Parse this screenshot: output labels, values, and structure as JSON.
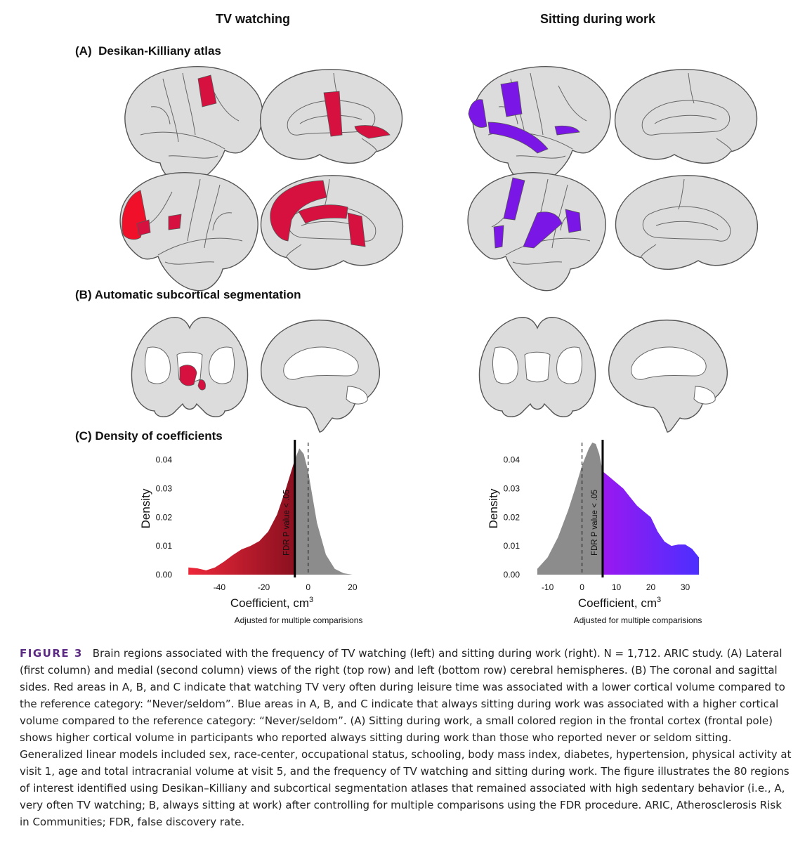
{
  "columns": {
    "left_title": "TV watching",
    "right_title": "Sitting during work"
  },
  "panels": {
    "a_letter": "(A)",
    "a_label": "Desikan-Killiany atlas",
    "b_letter": "(B)",
    "b_label": "Automatic subcortical segmentation",
    "c_letter": "(C)",
    "c_label": "Density of coefficients"
  },
  "colors": {
    "region_gray": "#dcdcdc",
    "tv_highlight": "#d6103f",
    "tv_highlight_bright": "#f0102a",
    "sit_highlight": "#7a16e6",
    "sit_highlight_blue": "#5a28ff",
    "density_gray": "#8c8c8c",
    "caption_label": "#5b2a82"
  },
  "chart_data": [
    {
      "type": "area",
      "x": [
        -54,
        -50,
        -46,
        -42,
        -38,
        -34,
        -30,
        -26,
        -22,
        -18,
        -14,
        -10,
        -6,
        -4,
        -2,
        0,
        2,
        4,
        8,
        12,
        16,
        20
      ],
      "y": [
        0.0025,
        0.0022,
        0.0015,
        0.0025,
        0.0045,
        0.0068,
        0.0088,
        0.01,
        0.0117,
        0.015,
        0.021,
        0.03,
        0.04,
        0.044,
        0.042,
        0.036,
        0.027,
        0.018,
        0.007,
        0.002,
        0.0005,
        0.0
      ],
      "threshold_solid": -6,
      "reference_dashed": 0,
      "threshold_label": "FDR P value < .05",
      "xlabel": "Coefficient, cm",
      "xlabel_sup": "3",
      "ylabel": "Density",
      "xticks": [
        -40,
        -20,
        0,
        20
      ],
      "yticks": [
        0.0,
        0.01,
        0.02,
        0.03,
        0.04
      ],
      "ytick_labels": [
        "0.00",
        "0.01",
        "0.02",
        "0.03",
        "0.04"
      ],
      "xlim": [
        -55,
        21
      ],
      "ylim": [
        0,
        0.046
      ],
      "note": "Adjusted for multiple comparisions"
    },
    {
      "type": "area",
      "x": [
        -13,
        -10,
        -7,
        -4,
        -2,
        0,
        2,
        3,
        4,
        5,
        6,
        8,
        10,
        12,
        14,
        16,
        18,
        20,
        22,
        24,
        26,
        28,
        30,
        32,
        34
      ],
      "y": [
        0.002,
        0.006,
        0.013,
        0.0225,
        0.03,
        0.038,
        0.044,
        0.046,
        0.0455,
        0.042,
        0.036,
        0.034,
        0.032,
        0.03,
        0.027,
        0.024,
        0.022,
        0.02,
        0.015,
        0.0115,
        0.01,
        0.0105,
        0.0105,
        0.009,
        0.006
      ],
      "threshold_solid": 6,
      "reference_dashed": 0,
      "threshold_label": "FDR P value < .05",
      "xlabel": "Coefficient, cm",
      "xlabel_sup": "3",
      "ylabel": "Density",
      "xticks": [
        -10,
        0,
        10,
        20,
        30
      ],
      "yticks": [
        0.0,
        0.01,
        0.02,
        0.03,
        0.04
      ],
      "ytick_labels": [
        "0.00",
        "0.01",
        "0.02",
        "0.03",
        "0.04"
      ],
      "xlim": [
        -14,
        35
      ],
      "ylim": [
        0,
        0.046
      ],
      "note": "Adjusted for multiple comparisions"
    }
  ],
  "caption": {
    "label": "FIGURE 3",
    "text": "Brain regions associated with the frequency of TV watching (left) and sitting during work (right). N = 1,712. ARIC study. (A) Lateral (first column) and medial (second column) views of the right (top row) and left (bottom row) cerebral hemispheres. (B) The coronal and sagittal sides. Red areas in A, B, and C indicate that watching TV very often during leisure time was associated with a lower cortical volume compared to the reference category: “Never/seldom”. Blue areas in A, B, and C indicate that always sitting during work was associated with a higher cortical volume compared to the reference category: “Never/seldom”. (A) Sitting during work, a small colored region in the frontal cortex (frontal pole) shows higher cortical volume in participants who reported always sitting during work than those who reported never or seldom sitting. Generalized linear models included sex, race-center, occupational status, schooling, body mass index, diabetes, hypertension, physical activity at visit 1, age and total intracranial volume at visit 5, and the frequency of TV watching and sitting during work. The figure illustrates the 80 regions of interest identified using Desikan–Killiany and subcortical segmentation atlases that remained associated with high sedentary behavior (i.e., A, very often TV watching; B, always sitting at work) after controlling for multiple comparisons using the FDR procedure. ARIC, Atherosclerosis Risk in Communities; FDR, false discovery rate."
  }
}
